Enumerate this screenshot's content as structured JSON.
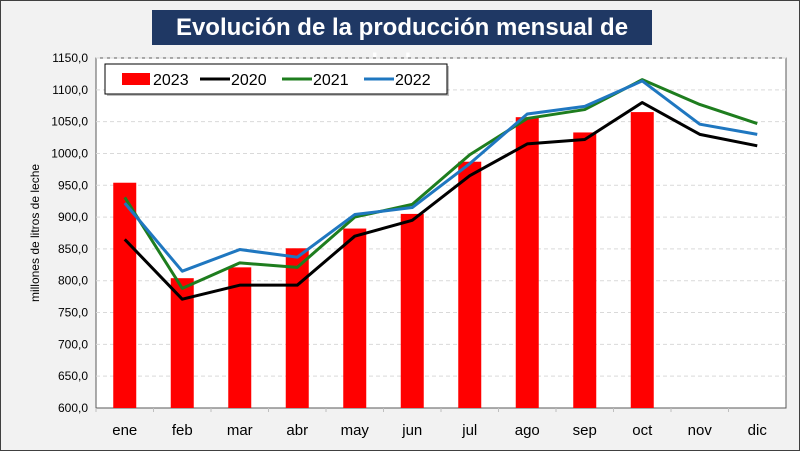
{
  "chart_data": {
    "type": "bar",
    "title": "Evolución de la producción mensual de leche",
    "xlabel": "",
    "ylabel": "millones de litros de leche",
    "ylim": [
      600,
      1150
    ],
    "yticks": [
      "600,0",
      "650,0",
      "700,0",
      "750,0",
      "800,0",
      "850,0",
      "900,0",
      "950,0",
      "1000,0",
      "1050,0",
      "1100,0",
      "1150,0"
    ],
    "grid": true,
    "legend_position": "top-left",
    "categories": [
      "ene",
      "feb",
      "mar",
      "abr",
      "may",
      "jun",
      "jul",
      "ago",
      "sep",
      "oct",
      "nov",
      "dic"
    ],
    "series": [
      {
        "name": "2023",
        "kind": "bar",
        "color": "#ff0000",
        "values": [
          954,
          804,
          821,
          851,
          882,
          905,
          987,
          1057,
          1033,
          1065,
          null,
          null
        ]
      },
      {
        "name": "2020",
        "kind": "line",
        "color": "#000000",
        "values": [
          865,
          771,
          793,
          793,
          870,
          895,
          965,
          1015,
          1022,
          1080,
          1030,
          1012
        ]
      },
      {
        "name": "2021",
        "kind": "line",
        "color": "#1e7d1e",
        "values": [
          931,
          788,
          828,
          821,
          900,
          920,
          998,
          1055,
          1069,
          1116,
          1077,
          1047
        ]
      },
      {
        "name": "2022",
        "kind": "line",
        "color": "#1f77c0",
        "values": [
          922,
          815,
          849,
          837,
          904,
          915,
          984,
          1062,
          1074,
          1114,
          1046,
          1030
        ]
      }
    ]
  }
}
